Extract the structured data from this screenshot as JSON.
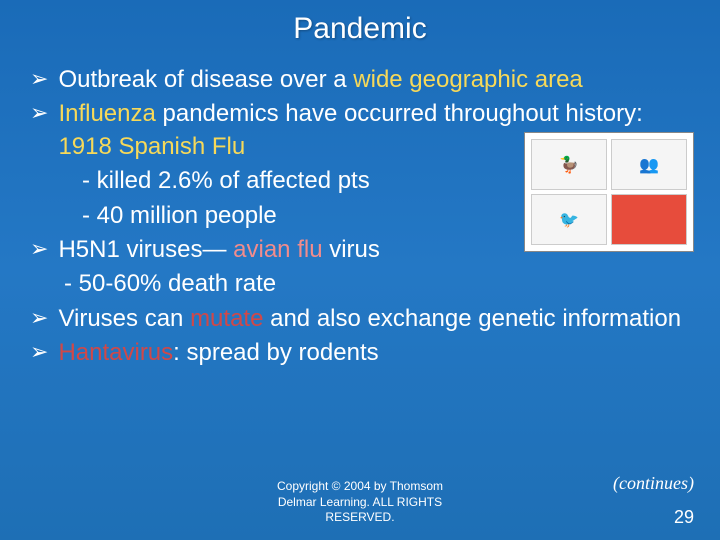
{
  "title": "Pandemic",
  "bullets": {
    "b1_pre": "Outbreak of disease over a ",
    "b1_hl": "wide geographic area",
    "b2_hl": "Influenza",
    "b2_post": " pandemics have occurred throughout history: ",
    "b2_hl2": "1918 Spanish Flu",
    "b2_sub1": "- killed  2.6% of affected pts",
    "b2_sub2": "- 40 million people",
    "b3_pre": "H5N1 viruses— ",
    "b3_hl": "avian flu",
    "b3_post": " virus",
    "b3_sub1": "- 50-60% death rate",
    "b4_pre": "Viruses can ",
    "b4_hl": "mutate",
    "b4_post": " and also exchange genetic information",
    "b5_hl": "Hantavirus",
    "b5_post": ": spread by rodents"
  },
  "marker": "➢",
  "copyright": {
    "l1": "Copyright © 2004 by Thomsom",
    "l2": "Delmar Learning. ALL RIGHTS",
    "l3": "RESERVED."
  },
  "continues": "(continues)",
  "page_num": "29",
  "colors": {
    "highlight1": "#f7d959",
    "highlight2": "#f28c8c",
    "highlight3": "#d04848"
  }
}
